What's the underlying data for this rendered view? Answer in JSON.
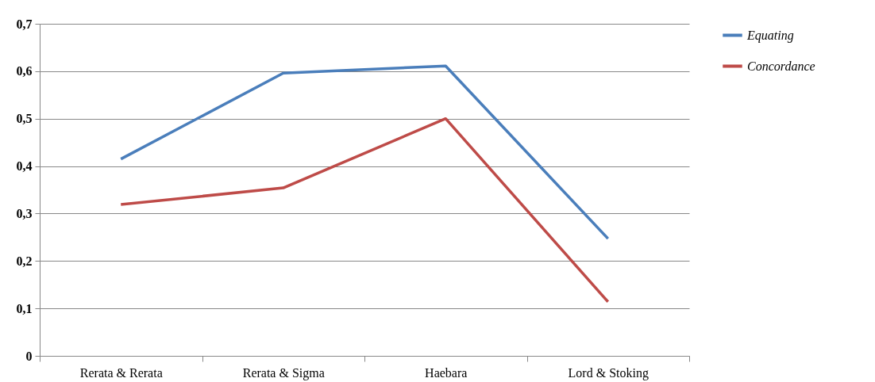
{
  "chart_data": {
    "type": "line",
    "categories": [
      "Rerata & Rerata",
      "Rerata & Sigma",
      "Haebara",
      "Lord & Stoking"
    ],
    "series": [
      {
        "name": "Equating",
        "color": "#4a7ebb",
        "values": [
          0.415,
          0.596,
          0.611,
          0.247
        ]
      },
      {
        "name": "Concordance",
        "color": "#be4b48",
        "values": [
          0.319,
          0.354,
          0.5,
          0.114
        ]
      }
    ],
    "ylim": [
      0,
      0.7
    ],
    "yticks": [
      0,
      {
        "value": 0.1,
        "label": "0,1"
      },
      {
        "value": 0.2,
        "label": "0,2"
      },
      {
        "value": 0.3,
        "label": "0,3"
      },
      {
        "value": 0.4,
        "label": "0,4"
      },
      {
        "value": 0.5,
        "label": "0,5"
      },
      {
        "value": 0.6,
        "label": "0,6"
      },
      {
        "value": 0.7,
        "label": "0,7"
      }
    ],
    "grid": "y",
    "legend": "right",
    "marker": "none",
    "line_style": "solid"
  }
}
